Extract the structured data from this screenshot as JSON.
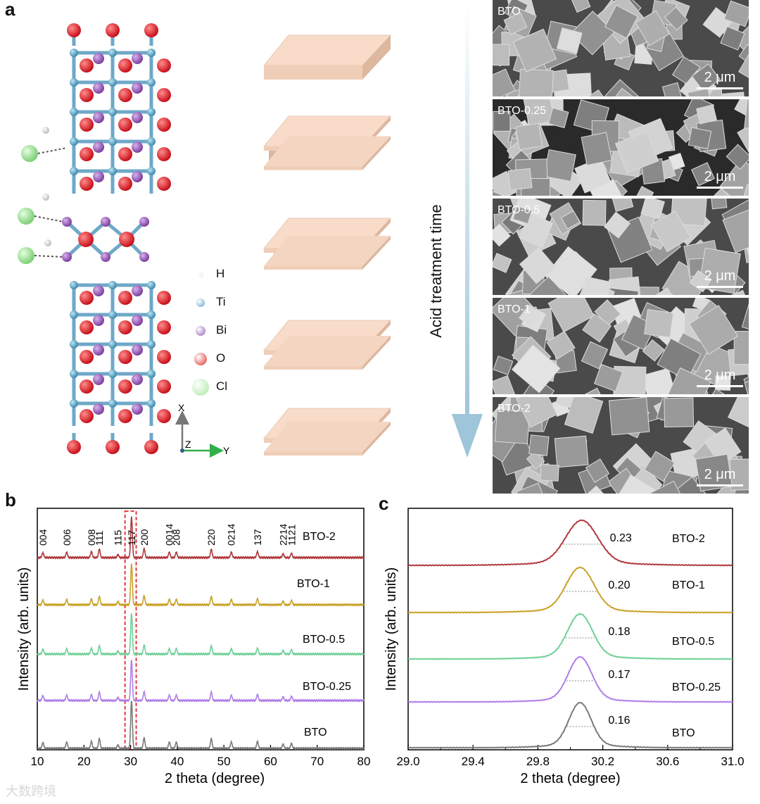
{
  "panels": {
    "a": "a",
    "b": "b",
    "c": "c"
  },
  "legend": [
    {
      "symbol": "H",
      "color": "#e8e8e8"
    },
    {
      "symbol": "Ti",
      "color": "#5aa6c8"
    },
    {
      "symbol": "Bi",
      "color": "#9a5cb8"
    },
    {
      "symbol": "O",
      "color": "#e03030"
    },
    {
      "symbol": "Cl",
      "color": "#a6e8a0"
    }
  ],
  "axes_labels": {
    "x": "X",
    "y": "Y",
    "z": "Z"
  },
  "arrow_label": "Acid treatment time",
  "sem_images": [
    {
      "label": "BTO",
      "scale": "2 μm"
    },
    {
      "label": "BTO-0.25",
      "scale": "2 μm"
    },
    {
      "label": "BTO-0.5",
      "scale": "2 μm"
    },
    {
      "label": "BTO-1",
      "scale": "2 μm"
    },
    {
      "label": "BTO-2",
      "scale": "2 μm"
    }
  ],
  "chart_data": [
    {
      "type": "line",
      "panel": "b",
      "xlabel": "2 theta (degree)",
      "ylabel": "Intensity (arb. units)",
      "xlim": [
        10,
        80
      ],
      "xticks": [
        10,
        20,
        30,
        40,
        50,
        60,
        70,
        80
      ],
      "peak_labels": [
        {
          "x": 11.2,
          "label": "004"
        },
        {
          "x": 16.3,
          "label": "006"
        },
        {
          "x": 21.6,
          "label": "008"
        },
        {
          "x": 23.3,
          "label": "111"
        },
        {
          "x": 27.3,
          "label": "115"
        },
        {
          "x": 30.2,
          "label": "117"
        },
        {
          "x": 32.9,
          "label": "200"
        },
        {
          "x": 38.3,
          "label": "0014"
        },
        {
          "x": 39.8,
          "label": "208"
        },
        {
          "x": 47.3,
          "label": "220"
        },
        {
          "x": 51.6,
          "label": "0214"
        },
        {
          "x": 57.2,
          "label": "137"
        },
        {
          "x": 62.7,
          "label": "2214"
        },
        {
          "x": 64.5,
          "label": "1121"
        }
      ],
      "highlight_range": [
        28.8,
        31.2
      ],
      "series": [
        {
          "name": "BTO-2",
          "color": "#b03a3e"
        },
        {
          "name": "BTO-1",
          "color": "#c9a227"
        },
        {
          "name": "BTO-0.5",
          "color": "#6fcf97"
        },
        {
          "name": "BTO-0.25",
          "color": "#b07ee8"
        },
        {
          "name": "BTO",
          "color": "#7a7a7a"
        }
      ]
    },
    {
      "type": "line",
      "panel": "c",
      "xlabel": "2 theta (degree)",
      "ylabel": "Intensity (arb. units)",
      "xlim": [
        29.0,
        31.0
      ],
      "xticks": [
        "29.0",
        "29.4",
        "29.8",
        "30.2",
        "30.6",
        "31.0"
      ],
      "series": [
        {
          "name": "BTO-2",
          "color": "#b03a3e",
          "peak": 30.07,
          "fwhm": "0.23"
        },
        {
          "name": "BTO-1",
          "color": "#c9a227",
          "peak": 30.06,
          "fwhm": "0.20"
        },
        {
          "name": "BTO-0.5",
          "color": "#6fcf97",
          "peak": 30.06,
          "fwhm": "0.18"
        },
        {
          "name": "BTO-0.25",
          "color": "#b07ee8",
          "peak": 30.06,
          "fwhm": "0.17"
        },
        {
          "name": "BTO",
          "color": "#7a7a7a",
          "peak": 30.06,
          "fwhm": "0.16"
        }
      ]
    }
  ],
  "watermark": "大数跨境"
}
